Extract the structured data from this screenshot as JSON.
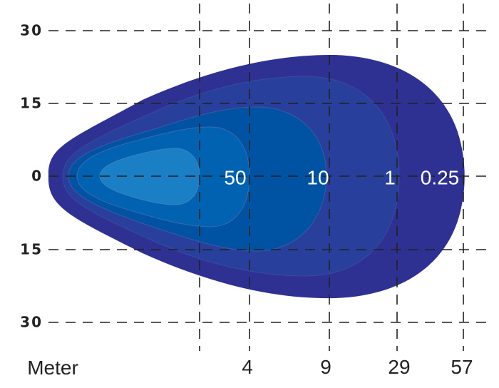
{
  "y_axis": {
    "labels": [
      "30",
      "15",
      "0",
      "15",
      "30"
    ]
  },
  "x_axis": {
    "title": "Meter",
    "labels": [
      "4",
      "9",
      "29",
      "57"
    ]
  },
  "contours": [
    {
      "label": "50"
    },
    {
      "label": "10"
    },
    {
      "label": "1"
    },
    {
      "label": "0.25"
    }
  ]
}
